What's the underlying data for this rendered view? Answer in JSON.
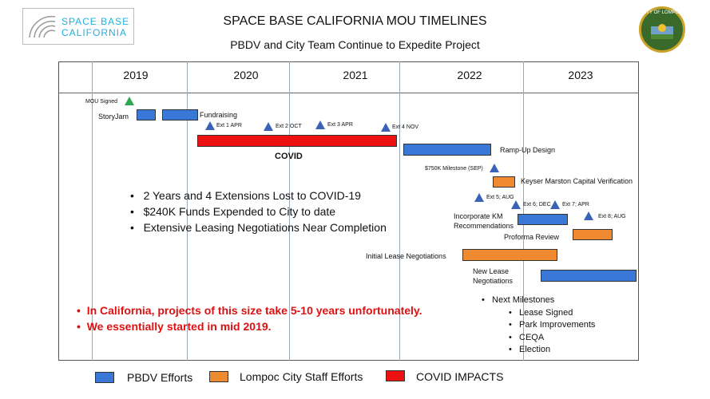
{
  "logo": {
    "line1": "SPACE BASE",
    "line2": "CALIFORNIA"
  },
  "seal": {
    "text": "CITY OF LOMPOC"
  },
  "title": "SPACE BASE CALIFORNIA MOU TIMELINES",
  "subtitle": "PBDV and City Team Continue to Expedite Project",
  "years": [
    "2019",
    "2020",
    "2021",
    "2022",
    "2023"
  ],
  "milestones": {
    "mou_signed": "MOU Signed",
    "ext1": "Ext 1 APR",
    "ext2": "Ext 2 OCT",
    "ext3": "Ext 3 APR",
    "ext4": "Ext 4 NOV",
    "m750": "$750K Milestone (SEP)",
    "ext5": "Ext 5; AUG",
    "ext6": "Ext 6; DEC",
    "ext7": "Ext 7; APR",
    "ext8": "Ext 8; AUG"
  },
  "tasks": {
    "storyjam": "StoryJam",
    "fundraising": "Fundraising",
    "covid": "COVID",
    "rampup": "Ramp-Up Design",
    "keyser": "Keyser Marston Capital Verification",
    "km_line1": "Incorporate KM",
    "km_line2": "Recommendations",
    "proforma": "Proforma Review",
    "initial_lease": "Initial Lease Negotiations",
    "new_lease_line1": "New Lease",
    "new_lease_line2": "Negotiations"
  },
  "bullets": [
    "2 Years and 4 Extensions Lost to COVID-19",
    "$240K Funds Expended to City to date",
    "Extensive Leasing Negotiations Near Completion"
  ],
  "red_bullets": [
    "In California, projects of this size take 5-10 years unfortunately.",
    "We essentially started in mid 2019."
  ],
  "next_milestones": {
    "heading": "Next Milestones",
    "items": [
      "Lease Signed",
      "Park Improvements",
      "CEQA",
      "Election"
    ]
  },
  "legend": {
    "pbdv": "PBDV Efforts",
    "city": "Lompoc City Staff Efforts",
    "covid": "COVID IMPACTS"
  },
  "colors": {
    "pbdv": "#3a78d8",
    "city": "#f08a30",
    "covid": "#ee1111",
    "milestone": "#3a63b8",
    "mou": "#2fa84f"
  }
}
